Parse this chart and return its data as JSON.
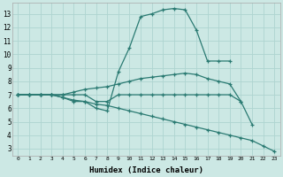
{
  "xlabel": "Humidex (Indice chaleur)",
  "bg_color": "#cce8e4",
  "grid_color": "#aed4d0",
  "line_color": "#2a7a72",
  "xlim": [
    -0.5,
    23.5
  ],
  "ylim": [
    2.5,
    13.8
  ],
  "yticks": [
    3,
    4,
    5,
    6,
    7,
    8,
    9,
    10,
    11,
    12,
    13
  ],
  "xticks": [
    0,
    1,
    2,
    3,
    4,
    5,
    6,
    7,
    8,
    9,
    10,
    11,
    12,
    13,
    14,
    15,
    16,
    17,
    18,
    19,
    20,
    21,
    22,
    23
  ],
  "series": [
    {
      "xy": [
        [
          0,
          7
        ],
        [
          1,
          7
        ],
        [
          2,
          7
        ],
        [
          3,
          7
        ],
        [
          4,
          6.8
        ],
        [
          5,
          6.5
        ],
        [
          6,
          6.5
        ],
        [
          7,
          6.0
        ],
        [
          8,
          5.8
        ],
        [
          9,
          8.7
        ],
        [
          10,
          10.5
        ],
        [
          11,
          12.8
        ],
        [
          12,
          13.0
        ],
        [
          13,
          13.3
        ],
        [
          14,
          13.4
        ],
        [
          15,
          13.3
        ],
        [
          16,
          11.8
        ],
        [
          17,
          9.5
        ],
        [
          18,
          9.5
        ],
        [
          19,
          9.5
        ],
        [
          20,
          null
        ],
        [
          21,
          null
        ],
        [
          22,
          null
        ],
        [
          23,
          null
        ]
      ]
    },
    {
      "xy": [
        [
          0,
          7
        ],
        [
          1,
          7
        ],
        [
          2,
          7
        ],
        [
          3,
          7
        ],
        [
          4,
          7.0
        ],
        [
          5,
          7.2
        ],
        [
          6,
          7.4
        ],
        [
          7,
          7.5
        ],
        [
          8,
          7.6
        ],
        [
          9,
          7.8
        ],
        [
          10,
          8.0
        ],
        [
          11,
          8.2
        ],
        [
          12,
          8.3
        ],
        [
          13,
          8.4
        ],
        [
          14,
          8.5
        ],
        [
          15,
          8.6
        ],
        [
          16,
          8.5
        ],
        [
          17,
          8.2
        ],
        [
          18,
          8.0
        ],
        [
          19,
          7.8
        ],
        [
          20,
          6.5
        ],
        [
          21,
          null
        ],
        [
          22,
          null
        ],
        [
          23,
          null
        ]
      ]
    },
    {
      "xy": [
        [
          0,
          7
        ],
        [
          1,
          7
        ],
        [
          2,
          7
        ],
        [
          3,
          7
        ],
        [
          4,
          7.0
        ],
        [
          5,
          7.0
        ],
        [
          6,
          7.0
        ],
        [
          7,
          6.5
        ],
        [
          8,
          6.5
        ],
        [
          9,
          7.0
        ],
        [
          10,
          7.0
        ],
        [
          11,
          7.0
        ],
        [
          12,
          7.0
        ],
        [
          13,
          7.0
        ],
        [
          14,
          7.0
        ],
        [
          15,
          7.0
        ],
        [
          16,
          7.0
        ],
        [
          17,
          7.0
        ],
        [
          18,
          7.0
        ],
        [
          19,
          7.0
        ],
        [
          20,
          6.5
        ],
        [
          21,
          4.8
        ],
        [
          22,
          null
        ],
        [
          23,
          null
        ]
      ]
    },
    {
      "xy": [
        [
          0,
          7
        ],
        [
          1,
          7
        ],
        [
          2,
          7
        ],
        [
          3,
          7
        ],
        [
          4,
          6.8
        ],
        [
          5,
          6.6
        ],
        [
          6,
          6.5
        ],
        [
          7,
          6.3
        ],
        [
          8,
          6.2
        ],
        [
          9,
          6.0
        ],
        [
          10,
          5.8
        ],
        [
          11,
          5.6
        ],
        [
          12,
          5.4
        ],
        [
          13,
          5.2
        ],
        [
          14,
          5.0
        ],
        [
          15,
          4.8
        ],
        [
          16,
          4.6
        ],
        [
          17,
          4.4
        ],
        [
          18,
          4.2
        ],
        [
          19,
          4.0
        ],
        [
          20,
          3.8
        ],
        [
          21,
          3.6
        ],
        [
          22,
          3.2
        ],
        [
          23,
          2.8
        ]
      ]
    }
  ]
}
